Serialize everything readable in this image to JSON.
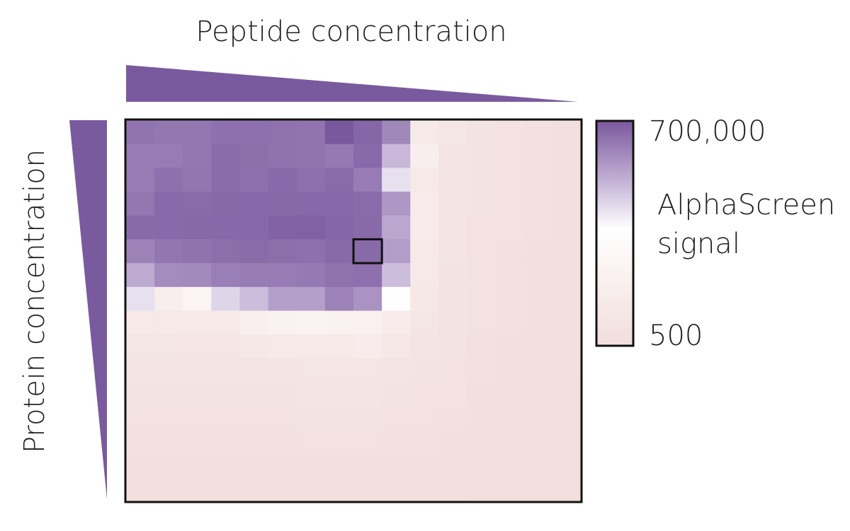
{
  "chart_data": {
    "type": "heatmap",
    "title": "",
    "xlabel": "Peptide concentration",
    "ylabel": "Protein concentration",
    "x_direction": "decreasing left to right",
    "y_direction": "decreasing top to bottom",
    "colorbar": {
      "label_lines": [
        "AlphaScreen",
        "signal"
      ],
      "max_label": "700,000",
      "min_label": "500",
      "max": 700000,
      "min": 500,
      "colors": [
        "#f1dedd",
        "#fbf4f3",
        "#ffffff",
        "#c7b6d8",
        "#7a589e"
      ]
    },
    "highlighted_cell": {
      "row": 5,
      "col": 8
    },
    "values": [
      [
        380000,
        360000,
        360000,
        420000,
        420000,
        410000,
        380000,
        700000,
        520000,
        250000,
        2000,
        1200,
        900,
        800,
        700,
        650
      ],
      [
        330000,
        330000,
        360000,
        450000,
        440000,
        400000,
        380000,
        340000,
        480000,
        90000,
        3000,
        1100,
        900,
        800,
        700,
        650
      ],
      [
        330000,
        420000,
        370000,
        450000,
        420000,
        480000,
        420000,
        460000,
        330000,
        40000,
        2000,
        1100,
        850,
        750,
        700,
        650
      ],
      [
        360000,
        480000,
        460000,
        490000,
        500000,
        490000,
        500000,
        500000,
        460000,
        180000,
        2500,
        1050,
        850,
        750,
        700,
        650
      ],
      [
        470000,
        480000,
        490000,
        500000,
        500000,
        560000,
        580000,
        520000,
        470000,
        130000,
        2500,
        1000,
        800,
        750,
        700,
        650
      ],
      [
        280000,
        370000,
        400000,
        440000,
        460000,
        440000,
        420000,
        470000,
        470000,
        160000,
        2000,
        1000,
        800,
        700,
        650,
        600
      ],
      [
        120000,
        230000,
        240000,
        300000,
        320000,
        330000,
        340000,
        410000,
        420000,
        80000,
        1800,
        900,
        750,
        700,
        650,
        600
      ],
      [
        40000,
        3000,
        6000,
        50000,
        80000,
        150000,
        150000,
        280000,
        200000,
        20000,
        1500,
        900,
        750,
        700,
        650,
        600
      ],
      [
        1800,
        1800,
        2000,
        2000,
        3500,
        5000,
        5500,
        5000,
        4000,
        2500,
        1200,
        900,
        750,
        700,
        650,
        600
      ],
      [
        1200,
        1200,
        1300,
        1300,
        1500,
        1800,
        2000,
        2000,
        2500,
        1500,
        1000,
        850,
        700,
        650,
        600,
        600
      ],
      [
        950,
        950,
        1000,
        1000,
        1000,
        1100,
        1200,
        1300,
        1300,
        1100,
        900,
        800,
        700,
        650,
        600,
        600
      ],
      [
        850,
        850,
        850,
        850,
        900,
        900,
        950,
        1000,
        1000,
        900,
        800,
        750,
        650,
        600,
        600,
        550
      ],
      [
        750,
        750,
        750,
        800,
        800,
        800,
        850,
        850,
        850,
        800,
        750,
        700,
        650,
        600,
        550,
        550
      ],
      [
        700,
        700,
        700,
        700,
        700,
        700,
        750,
        750,
        750,
        700,
        700,
        650,
        600,
        550,
        550,
        550
      ],
      [
        650,
        650,
        650,
        650,
        650,
        650,
        650,
        650,
        650,
        650,
        650,
        600,
        600,
        550,
        550,
        500
      ],
      [
        600,
        600,
        600,
        600,
        600,
        600,
        600,
        600,
        600,
        600,
        600,
        600,
        550,
        550,
        500,
        500
      ]
    ]
  }
}
